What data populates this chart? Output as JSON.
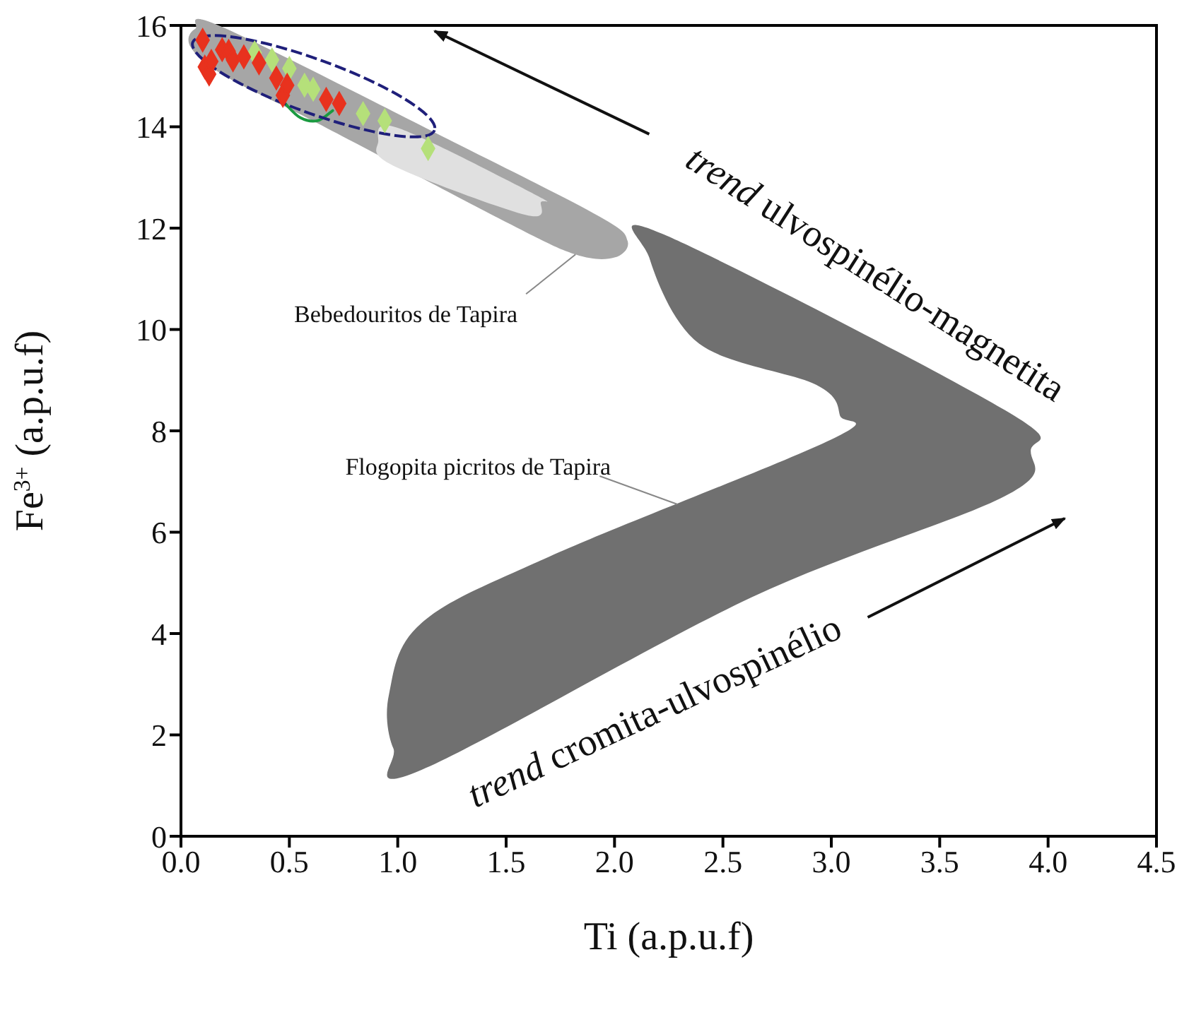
{
  "chart_data": {
    "type": "scatter",
    "xlabel": "Ti (a.p.u.f)",
    "ylabel": "Fe$^{3+}$ (a.p.u.f)",
    "xlim": [
      0,
      4.5
    ],
    "ylim": [
      0,
      16
    ],
    "xticks": [
      {
        "value": 0,
        "label": "0.0"
      },
      {
        "value": 0.5,
        "label": "0.5"
      },
      {
        "value": 1,
        "label": "1.0"
      },
      {
        "value": 1.5,
        "label": "1.5"
      },
      {
        "value": 2,
        "label": "2.0"
      },
      {
        "value": 2.5,
        "label": "2.5"
      },
      {
        "value": 3,
        "label": "3.0"
      },
      {
        "value": 3.5,
        "label": "3.5"
      },
      {
        "value": 4,
        "label": "4.0"
      },
      {
        "value": 4.5,
        "label": "4.5"
      }
    ],
    "yticks": [
      0,
      2,
      4,
      6,
      8,
      10,
      12,
      14,
      16
    ],
    "grid": false,
    "series": [
      {
        "type": "area",
        "color": "#a6a6a6",
        "x": [
          0.065,
          0.2,
          1.28,
          1.93,
          2.06,
          2.0,
          1.82,
          1.5,
          0.63,
          0.2,
          0.045
        ],
        "values": [
          15.93,
          15.95,
          13.65,
          12.23,
          11.75,
          11.42,
          11.48,
          12.12,
          14.07,
          15.01,
          15.57
        ]
      },
      {
        "type": "area",
        "color": "#e0e0e0",
        "x": [
          0.91,
          1.0,
          1.63,
          1.66,
          1.59,
          0.98
        ],
        "values": [
          13.7,
          13.98,
          12.67,
          12.51,
          12.26,
          13.23
        ]
      },
      {
        "type": "area",
        "color": "#707070",
        "x": [
          2.23,
          3.8,
          3.92,
          3.8,
          2.63,
          1.11,
          0.98,
          0.96,
          1.11,
          1.7,
          3.0,
          3.04,
          2.93,
          2.39,
          2.16
        ],
        "values": [
          11.87,
          8.41,
          7.6,
          6.71,
          4.71,
          1.31,
          1.73,
          2.81,
          4.21,
          5.52,
          7.83,
          8.3,
          8.91,
          9.72,
          11.42
        ]
      },
      {
        "type": "line",
        "color": "#1a9a40",
        "line_style": "solid",
        "x": [
          0.48,
          0.55,
          0.63,
          0.7
        ],
        "values": [
          14.46,
          14.18,
          14.12,
          14.32
        ]
      },
      {
        "marker": "diamond",
        "color": "#b5e07a",
        "x": [
          0.34,
          0.42,
          0.5,
          0.57,
          0.61,
          0.84,
          0.94,
          1.14
        ],
        "values": [
          15.46,
          15.32,
          15.15,
          14.82,
          14.74,
          14.26,
          14.12,
          13.57
        ]
      },
      {
        "marker": "diamond",
        "color": "#e8321e",
        "x": [
          0.1,
          0.11,
          0.13,
          0.14,
          0.19,
          0.22,
          0.24,
          0.29,
          0.36,
          0.44,
          0.47,
          0.49,
          0.67,
          0.73
        ],
        "values": [
          15.71,
          15.18,
          15.04,
          15.29,
          15.52,
          15.49,
          15.32,
          15.38,
          15.26,
          14.96,
          14.62,
          14.82,
          14.54,
          14.46
        ]
      }
    ],
    "annotations": [
      {
        "text": "Bebedouritos de Tapira",
        "x": 1.82,
        "y": 11.48
      },
      {
        "text": "Flogopita picritos de Tapira",
        "x": 2.29,
        "y": 6.55
      },
      "trend ulvospinélio-magnetita",
      "trend cromita-ulvospinélio"
    ]
  }
}
